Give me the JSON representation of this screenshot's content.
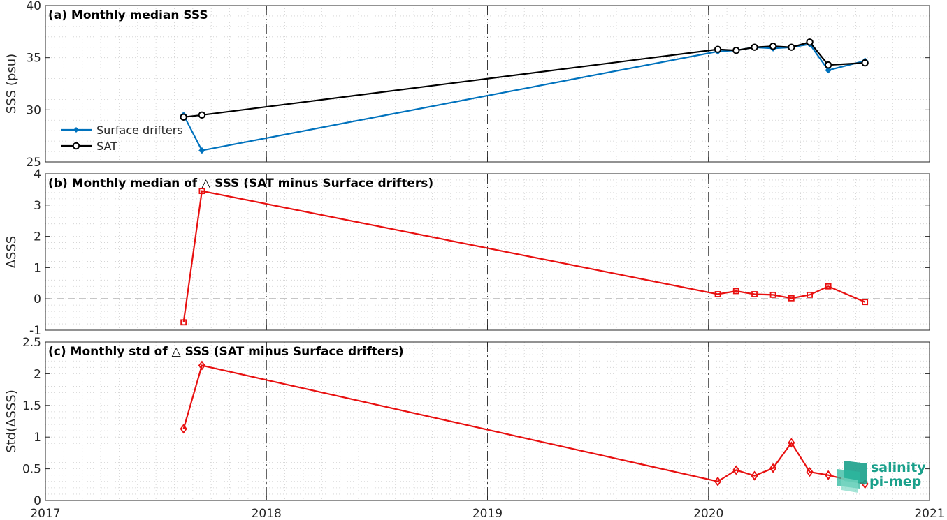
{
  "x_axis": {
    "tick_labels": [
      "2017",
      "2018",
      "2019",
      "2020",
      "2021"
    ],
    "tick_values": [
      2017,
      2018,
      2019,
      2020,
      2021
    ],
    "range": [
      2017,
      2021
    ]
  },
  "colors": {
    "surface_drifters": "#0072BD",
    "sat": "#000000",
    "delta": "#e81010",
    "grid": "#cfcfcf"
  },
  "logo": {
    "line1": "salinity",
    "line2": "pi-mep"
  },
  "chart_data": [
    {
      "type": "line",
      "title": "(a) Monthly median SSS",
      "ylabel": "SSS (psu)",
      "ylim": [
        25,
        40
      ],
      "yticks": [
        25,
        30,
        35,
        40
      ],
      "ytick_labels": [
        "25",
        "30",
        "35",
        "40"
      ],
      "grid": true,
      "legend": {
        "placement": "bottom-left",
        "entries": [
          "Surface drifters",
          "SAT"
        ]
      },
      "series": [
        {
          "name": "Surface drifters",
          "marker": "dot",
          "x": [
            2017.625,
            2017.708,
            2020.042,
            2020.125,
            2020.208,
            2020.292,
            2020.375,
            2020.458,
            2020.542,
            2020.708
          ],
          "y": [
            29.5,
            26.1,
            35.6,
            35.7,
            36.0,
            35.9,
            36.0,
            36.3,
            33.8,
            34.7
          ]
        },
        {
          "name": "SAT",
          "marker": "circle",
          "x": [
            2017.625,
            2017.708,
            2020.042,
            2020.125,
            2020.208,
            2020.292,
            2020.375,
            2020.458,
            2020.542,
            2020.708
          ],
          "y": [
            29.3,
            29.5,
            35.8,
            35.7,
            36.0,
            36.1,
            36.0,
            36.5,
            34.3,
            34.5
          ]
        }
      ]
    },
    {
      "type": "line",
      "title": "(b) Monthly median of △ SSS (SAT minus Surface drifters)",
      "ylabel": "ΔSSS",
      "ylim": [
        -1,
        4
      ],
      "yticks": [
        -1,
        0,
        1,
        2,
        3,
        4
      ],
      "ytick_labels": [
        "-1",
        "0",
        "1",
        "2",
        "3",
        "4"
      ],
      "grid": true,
      "zero_line": true,
      "series": [
        {
          "marker": "square",
          "x": [
            2017.625,
            2017.708,
            2020.042,
            2020.125,
            2020.208,
            2020.292,
            2020.375,
            2020.458,
            2020.542,
            2020.708
          ],
          "y": [
            -0.75,
            3.45,
            0.15,
            0.25,
            0.15,
            0.13,
            0.02,
            0.13,
            0.4,
            -0.1
          ]
        }
      ]
    },
    {
      "type": "line",
      "title": "(c) Monthly std of △ SSS (SAT minus Surface drifters)",
      "ylabel": "Std(ΔSSS)",
      "ylim": [
        0,
        2.5
      ],
      "yticks": [
        0,
        0.5,
        1,
        1.5,
        2,
        2.5
      ],
      "ytick_labels": [
        "0",
        "0.5",
        "1",
        "1.5",
        "2",
        "2.5"
      ],
      "grid": true,
      "series": [
        {
          "marker": "diamond",
          "x": [
            2017.625,
            2017.708,
            2020.042,
            2020.125,
            2020.208,
            2020.292,
            2020.375,
            2020.458,
            2020.542,
            2020.708
          ],
          "y": [
            1.13,
            2.13,
            0.3,
            0.48,
            0.39,
            0.51,
            0.91,
            0.45,
            0.4,
            0.26
          ]
        }
      ]
    }
  ]
}
